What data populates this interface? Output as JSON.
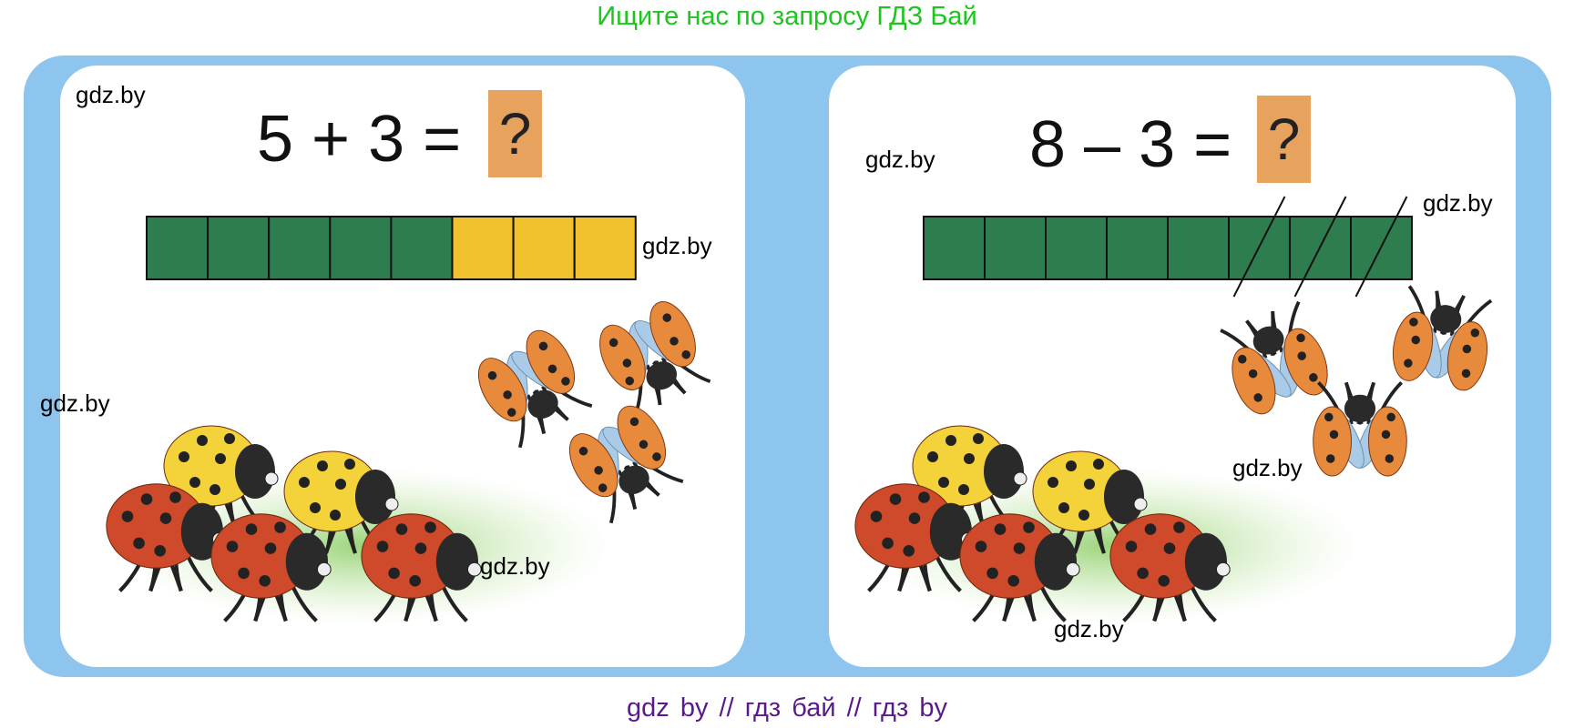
{
  "header": {
    "text": "Ищите нас по запросу ГДЗ Бай"
  },
  "footer": {
    "text": "gdz by  //  гдз бай  //  гдз by"
  },
  "left": {
    "equation": "5 + 3 =",
    "answer": "?",
    "bar": {
      "cells": 8,
      "green": 5,
      "yellow": 3
    },
    "ground_ladybugs": {
      "red": 3,
      "yellow": 2
    },
    "flying_ladybugs": 3
  },
  "right": {
    "equation": "8 – 3 =",
    "answer": "?",
    "bar": {
      "cells": 8,
      "green": 8,
      "crossed_out": 3
    },
    "ground_ladybugs": {
      "red": 3,
      "yellow": 2
    },
    "flying_ladybugs": 3
  },
  "watermark": "gdz.by",
  "colors": {
    "frame": "#8ec5ee",
    "green_cell": "#2e7d4f",
    "yellow_cell": "#f2c12e",
    "answer_box": "#e7a25e",
    "header": "#1ec51e",
    "footer": "#5a1a8c"
  }
}
